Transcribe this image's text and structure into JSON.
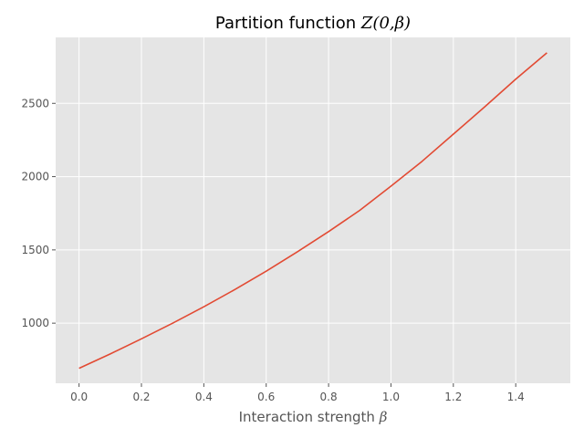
{
  "chart_data": {
    "type": "line",
    "title": {
      "prefix": "Partition function ",
      "math": "Z(0,β)"
    },
    "xlabel": {
      "text": "Interaction strength ",
      "math": "β"
    },
    "ylabel": "",
    "xlim": [
      -0.075,
      1.575
    ],
    "ylim": [
      590,
      2950
    ],
    "x_ticks": [
      0.0,
      0.2,
      0.4,
      0.6,
      0.8,
      1.0,
      1.2,
      1.4
    ],
    "x_tick_labels": [
      "0.0",
      "0.2",
      "0.4",
      "0.6",
      "0.8",
      "1.0",
      "1.2",
      "1.4"
    ],
    "y_ticks": [
      1000,
      1500,
      2000,
      2500
    ],
    "y_tick_labels": [
      "1000",
      "1500",
      "2000",
      "2500"
    ],
    "grid": true,
    "style": "ggplot",
    "colors": {
      "plot_background": "#e5e5e5",
      "grid": "#ffffff",
      "line": "#e24a33",
      "tick_label": "#555555"
    },
    "series": [
      {
        "x": [
          0.0,
          0.1,
          0.2,
          0.3,
          0.4,
          0.5,
          0.6,
          0.7,
          0.8,
          0.9,
          1.0,
          1.1,
          1.2,
          1.3,
          1.4,
          1.5
        ],
        "y": [
          692,
          790,
          893,
          1000,
          1112,
          1230,
          1355,
          1487,
          1625,
          1770,
          1935,
          2105,
          2290,
          2475,
          2665,
          2845
        ]
      }
    ]
  }
}
